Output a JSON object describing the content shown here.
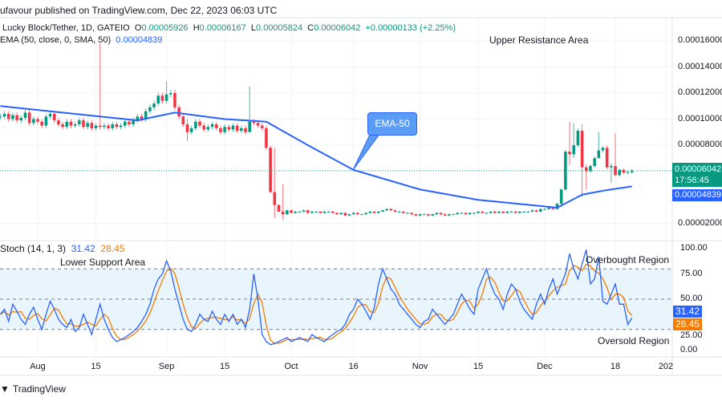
{
  "header": {
    "published": "ufavour published on TradingView.com, Dec 22, 2023 06:03 UTC"
  },
  "legend": {
    "symbol": "Lucky Block/Tether, 1D, GATEIO",
    "o_label": "O",
    "o": "0.00005926",
    "h_label": "H",
    "h": "0.00006167",
    "l_label": "L",
    "l": "0.00005824",
    "c_label": "C",
    "c": "0.00006042",
    "change": "+0.00000133 (+2.25%)",
    "ema_label": "EMA (50, close, 0, SMA, 50)",
    "ema_value": "0.00004839"
  },
  "annotations": {
    "upper_resistance": "Upper Resistance Area",
    "ema_callout": "EMA-50",
    "lower_support": "Lower Support Area",
    "overbought": "Overbought Region",
    "oversold": "Oversold Region"
  },
  "price_axis": {
    "ticks": [
      "0.00016000",
      "0.00014000",
      "0.00012000",
      "0.00010000",
      "0.00008000",
      "0.00002000"
    ],
    "last_price": "0.00006042",
    "countdown": "17:56:45",
    "ema_badge": "0.00004839"
  },
  "stoch": {
    "label": "Stoch (14, 1, 3)",
    "k_value": "31.42",
    "d_value": "28.45",
    "ticks": [
      "100.00",
      "75.00",
      "50.00",
      "25.00",
      "0.00"
    ],
    "upper_band": 80,
    "lower_band": 20,
    "middle": 50
  },
  "time_axis": {
    "ticks": [
      "Aug",
      "15",
      "Sep",
      "15",
      "Oct",
      "16",
      "Nov",
      "15",
      "Dec",
      "18",
      "202"
    ]
  },
  "footer": {
    "brand": "TradingView"
  },
  "colors": {
    "up": "#089981",
    "down": "#f23645",
    "ema": "#2962ff",
    "stoch_k": "#2962ff",
    "stoch_d": "#f57c00",
    "band_fill": "#e3f2fd",
    "callout": "#5b9cf6"
  },
  "chart_data": {
    "type": "candlestick",
    "interval": "1D",
    "price_range": [
      1e-05,
      0.000168
    ],
    "closes": [
      0.000102,
      0.000104,
      0.0001,
      0.000103,
      9.9e-05,
      0.000101,
      0.000105,
      9.7e-05,
      0.0001,
      9.8e-05,
      9.5e-05,
      0.000102,
      0.000104,
      9.9e-05,
      9.6e-05,
      9.4e-05,
      9.8e-05,
      9.5e-05,
      9.6e-05,
      9.9e-05,
      9.4e-05,
      9.7e-05,
      9.3e-05,
      9.5e-05,
      9.4e-05,
      9.5e-05,
      9.3e-05,
      9.6e-05,
      9.4e-05,
      9.5e-05,
      9.8e-05,
      9.6e-05,
      9.9e-05,
      0.000102,
      0.0001,
      0.000106,
      0.000109,
      0.000112,
      0.000118,
      0.000114,
      0.000119,
      0.00012,
      0.000109,
      0.000102,
      9.6e-05,
      9e-05,
      9.3e-05,
      9.8e-05,
      9.5e-05,
      9.2e-05,
      9.4e-05,
      9.6e-05,
      9.3e-05,
      9e-05,
      9.4e-05,
      9.2e-05,
      9.5e-05,
      9.1e-05,
      9.3e-05,
      9e-05,
      9.8e-05,
      9.7e-05,
      9.5e-05,
      9.3e-05,
      7.8e-05,
      4.4e-05,
      3.4e-05,
      2.9e-05,
      2.7e-05,
      3e-05,
      2.8e-05,
      2.9e-05,
      2.9e-05,
      3e-05,
      2.8e-05,
      2.9e-05,
      2.9e-05,
      2.8e-05,
      2.9e-05,
      2.9e-05,
      2.8e-05,
      2.7e-05,
      2.8e-05,
      2.6e-05,
      2.7e-05,
      2.8e-05,
      2.7e-05,
      2.7e-05,
      2.8e-05,
      2.9e-05,
      2.8e-05,
      2.9e-05,
      3e-05,
      3.1e-05,
      3e-05,
      2.9e-05,
      2.9e-05,
      2.8e-05,
      2.8e-05,
      2.7e-05,
      2.6e-05,
      2.7e-05,
      2.7e-05,
      2.6e-05,
      2.7e-05,
      2.8e-05,
      2.7e-05,
      2.6e-05,
      2.7e-05,
      2.7e-05,
      2.8e-05,
      2.8e-05,
      2.7e-05,
      2.8e-05,
      2.8e-05,
      2.9e-05,
      2.8e-05,
      2.8e-05,
      2.9e-05,
      2.8e-05,
      2.9e-05,
      2.8e-05,
      2.9e-05,
      2.9e-05,
      2.8e-05,
      2.9e-05,
      2.9e-05,
      2.9e-05,
      3e-05,
      2.9e-05,
      3.1e-05,
      3.1e-05,
      3.2e-05,
      3.1e-05,
      3.5e-05,
      4.6e-05,
      7.5e-05,
      7.3e-05,
      8e-05,
      9.1e-05,
      6.3e-05,
      6e-05,
      6.4e-05,
      7e-05,
      7.6e-05,
      7.8e-05,
      6.3e-05,
      6.4e-05,
      5.7e-05,
      6.1e-05,
      5.9e-05,
      5.926e-05,
      6.042e-05
    ],
    "notable_wicks": {
      "Aug 16": [
        0.000158,
        9.2e-05
      ],
      "Sep 1": [
        0.000129,
        0.000112
      ],
      "Sep 6": [
        0.0001,
        8.3e-05
      ],
      "Sep 21": [
        0.000125,
        9.2e-05
      ],
      "Sep 27": [
        7.8e-05,
        2.4e-05
      ],
      "Sep 29": [
        5e-05,
        2.3e-05
      ],
      "Dec 7": [
        9.8e-05,
        6.5e-05
      ],
      "Dec 8": [
        9.7e-05,
        7e-05
      ],
      "Dec 10": [
        9.6e-05,
        4e-05
      ],
      "Dec 11": [
        6.5e-05,
        4.6e-05
      ],
      "Dec 14": [
        9e-05,
        7e-05
      ],
      "Dec 17": [
        6.6e-05,
        5.1e-05
      ],
      "Dec 18": [
        8.9e-05,
        5.6e-05
      ]
    },
    "ema50": [
      [
        "Jul 23",
        0.00011
      ],
      [
        "Aug 10",
        0.000104
      ],
      [
        "Aug 25",
        9.9e-05
      ],
      [
        "Sep 3",
        0.000105
      ],
      [
        "Sep 15",
        0.0001
      ],
      [
        "Sep 25",
        9.8e-05
      ],
      [
        "Oct 5",
        8e-05
      ],
      [
        "Oct 16",
        6.1e-05
      ],
      [
        "Nov 1",
        4.6e-05
      ],
      [
        "Nov 15",
        3.8e-05
      ],
      [
        "Dec 1",
        3.3e-05
      ],
      [
        "Dec 4",
        3.2e-05
      ],
      [
        "Dec 10",
        4.2e-05
      ],
      [
        "Dec 15",
        4.5e-05
      ],
      [
        "Dec 22",
        4.839e-05
      ]
    ],
    "stoch_k": [
      35,
      40,
      28,
      45,
      38,
      30,
      25,
      35,
      42,
      30,
      20,
      35,
      48,
      40,
      30,
      25,
      22,
      30,
      18,
      22,
      35,
      25,
      15,
      30,
      45,
      30,
      20,
      12,
      8,
      10,
      12,
      15,
      18,
      22,
      28,
      35,
      45,
      60,
      70,
      75,
      88,
      78,
      60,
      45,
      30,
      20,
      18,
      25,
      35,
      30,
      28,
      38,
      30,
      25,
      35,
      28,
      35,
      25,
      30,
      22,
      40,
      75,
      50,
      15,
      8,
      5,
      6,
      8,
      10,
      12,
      8,
      10,
      12,
      10,
      8,
      15,
      12,
      10,
      8,
      12,
      15,
      18,
      20,
      25,
      35,
      40,
      50,
      45,
      38,
      30,
      42,
      65,
      80,
      70,
      60,
      55,
      45,
      40,
      35,
      30,
      25,
      22,
      28,
      30,
      40,
      35,
      30,
      25,
      30,
      35,
      45,
      55,
      48,
      40,
      35,
      60,
      70,
      80,
      65,
      55,
      50,
      40,
      55,
      65,
      60,
      48,
      40,
      35,
      30,
      45,
      55,
      45,
      60,
      70,
      55,
      65,
      75,
      95,
      80,
      70,
      85,
      99,
      65,
      70,
      92,
      48,
      45,
      55,
      65,
      45,
      45,
      25,
      31.42
    ],
    "stoch_range": [
      0,
      100
    ]
  }
}
